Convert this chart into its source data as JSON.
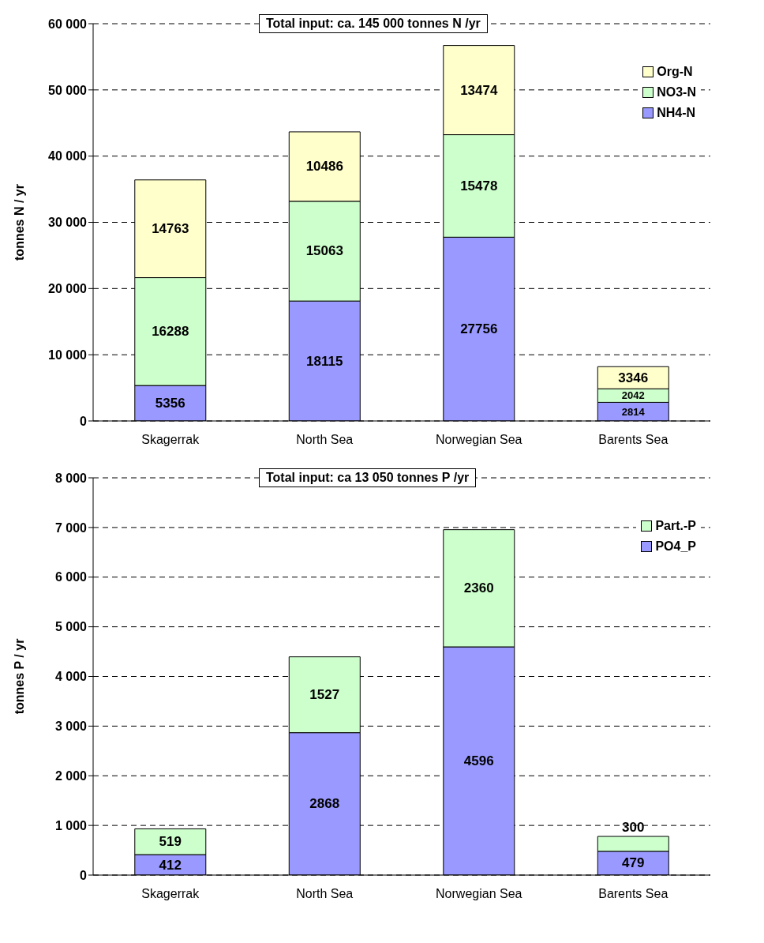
{
  "chart_data": [
    {
      "type": "bar",
      "title": "Total input: ca. 145 000 tonnes N /yr",
      "ylabel": "tonnes N / yr",
      "categories": [
        "Skagerrak",
        "North Sea",
        "Norwegian Sea",
        "Barents Sea"
      ],
      "stacked": true,
      "data_labels": true,
      "grid": "y",
      "legend": "top right",
      "ylim": [
        0,
        60000
      ],
      "yticks": [
        0,
        {
          "value": 10000,
          "label": "10 000"
        },
        {
          "value": 20000,
          "label": "20 000"
        },
        {
          "value": 30000,
          "label": "30 000"
        },
        {
          "value": 40000,
          "label": "40 000"
        },
        {
          "value": 50000,
          "label": "50 000"
        },
        {
          "value": 60000,
          "label": "60 000"
        }
      ],
      "series": [
        {
          "name": "NH4-N",
          "color": "#9999ff",
          "values": [
            5356,
            18115,
            27756,
            2814
          ]
        },
        {
          "name": "NO3-N",
          "color": "#ccffcc",
          "values": [
            16288,
            15063,
            15478,
            2042
          ]
        },
        {
          "name": "Org-N",
          "color": "#ffffcc",
          "values": [
            14763,
            10486,
            13474,
            3346
          ]
        }
      ]
    },
    {
      "type": "bar",
      "title": "Total input: ca 13 050 tonnes P /yr",
      "ylabel": "tonnes P / yr",
      "categories": [
        "Skagerrak",
        "North Sea",
        "Norwegian Sea",
        "Barents Sea"
      ],
      "stacked": true,
      "data_labels": true,
      "grid": "y",
      "legend": "top right",
      "ylim": [
        0,
        8000
      ],
      "yticks": [
        0,
        {
          "value": 1000,
          "label": "1 000"
        },
        {
          "value": 2000,
          "label": "2 000"
        },
        {
          "value": 3000,
          "label": "3 000"
        },
        {
          "value": 4000,
          "label": "4 000"
        },
        {
          "value": 5000,
          "label": "5 000"
        },
        {
          "value": 6000,
          "label": "6 000"
        },
        {
          "value": 7000,
          "label": "7 000"
        },
        {
          "value": 8000,
          "label": "8 000"
        }
      ],
      "series": [
        {
          "name": "PO4_P",
          "color": "#9999ff",
          "values": [
            412,
            2868,
            4596,
            479
          ]
        },
        {
          "name": "Part.-P",
          "color": "#ccffcc",
          "values": [
            519,
            1527,
            2360,
            300
          ]
        }
      ]
    }
  ]
}
